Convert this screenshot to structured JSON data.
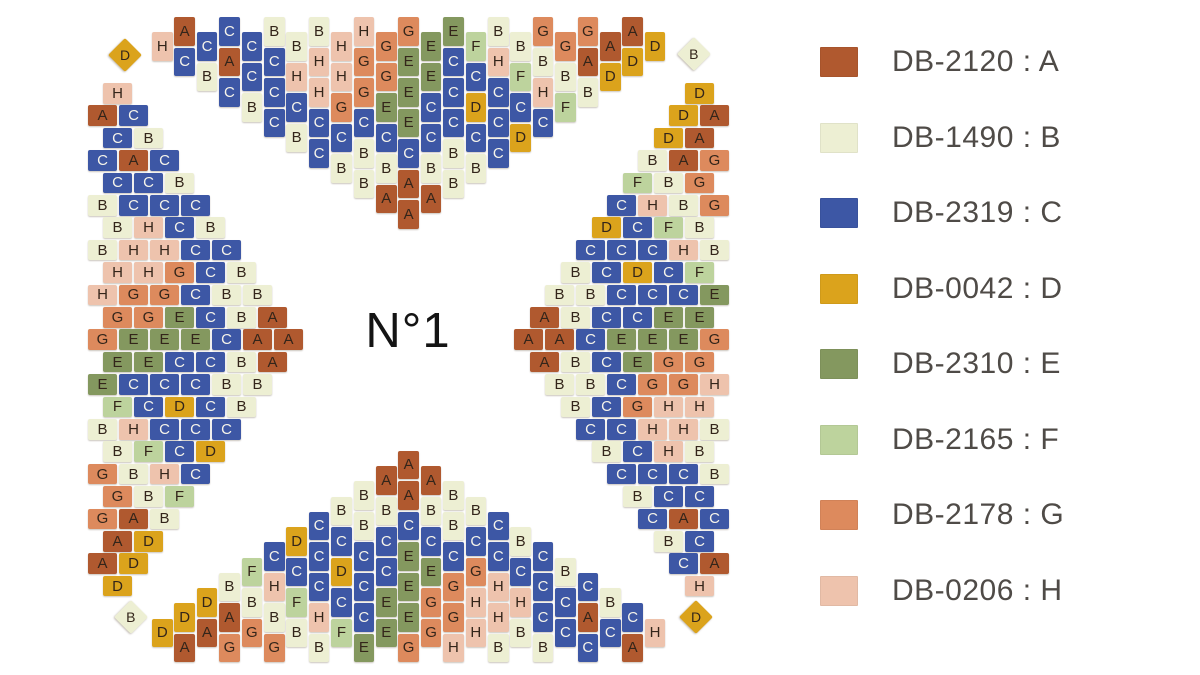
{
  "center_label": "N°1",
  "palette": {
    "A": "#b0592f",
    "B": "#edefd3",
    "C": "#3d57a5",
    "D": "#dba31c",
    "E": "#84985f",
    "F": "#bdd39d",
    "G": "#dd8a5d",
    "H": "#eec3ad"
  },
  "bead_letter_colors": {
    "default": "#33251a",
    "C": "#f6f4ea"
  },
  "legend_separator": " : ",
  "legend": [
    {
      "code": "DB-2120",
      "letter": "A"
    },
    {
      "code": "DB-1490",
      "letter": "B"
    },
    {
      "code": "DB-2319",
      "letter": "C"
    },
    {
      "code": "DB-0042",
      "letter": "D"
    },
    {
      "code": "DB-2310",
      "letter": "E"
    },
    {
      "code": "DB-2165",
      "letter": "F"
    },
    {
      "code": "DB-2178",
      "letter": "G"
    },
    {
      "code": "DB-0206",
      "letter": "H"
    }
  ],
  "triangles": {
    "top": {
      "orientation": "flat-edge-top-point-down",
      "columns_left_to_right_beads_top_to_bottom": [
        "H",
        "AC",
        "CB",
        "CAC",
        "CCB",
        "BCCC",
        "BHCB",
        "BHHCC",
        "HHGCB",
        "HGGCBB",
        "GGECBA",
        "GEEECAA",
        "EECCBA",
        "ECCCBB",
        "FCDCB",
        "BHCCC",
        "BFCD",
        "GBHC",
        "GBF",
        "GAB",
        "AD",
        "AD",
        "D"
      ]
    },
    "left": {
      "orientation": "flat-edge-left-point-right",
      "rows_top_to_bottom_beads_left_to_right": [
        "H",
        "AC",
        "CB",
        "CAC",
        "CCB",
        "BCCC",
        "BHCB",
        "BHHCC",
        "HHGCB",
        "HGGCBB",
        "GGECBA",
        "GEEECAA",
        "EECCBA",
        "ECCCBB",
        "FCDCB",
        "BHCCC",
        "BFCD",
        "GBHC",
        "GBF",
        "GAB",
        "AD",
        "AD",
        "D"
      ]
    },
    "right": {
      "orientation": "flat-edge-right-point-left",
      "rows_top_to_bottom_beads_left_to_right": [
        "D",
        "DA",
        "DA",
        "BAG",
        "FBG",
        "CHBG",
        "DCFB",
        "CCCHB",
        "BCDCF",
        "BBCCCE",
        "ABCCEE",
        "AACEEEG",
        "ABCEGG",
        "BBCGGH",
        "BCGHH",
        "CCHHB",
        "BCHB",
        "CCCB",
        "BCC",
        "CAC",
        "BC",
        "CA",
        "H"
      ]
    },
    "bottom": {
      "orientation": "flat-edge-bottom-point-up",
      "columns_left_to_right_beads_top_to_bottom": [
        "D",
        "DA",
        "DA",
        "BAG",
        "FBG",
        "CHBG",
        "DCFB",
        "CCCHB",
        "BCDCF",
        "BBCCCE",
        "ABCCEE",
        "AACEEEG",
        "ABCEGG",
        "BBCGGH",
        "BCGHH",
        "CCHHB",
        "BCHB",
        "CCCB",
        "BCC",
        "CAC",
        "BC",
        "CA",
        "H"
      ]
    }
  },
  "corner_diamonds": [
    {
      "position": "top-left",
      "letter": "D"
    },
    {
      "position": "top-right",
      "letter": "B"
    },
    {
      "position": "bottom-left",
      "letter": "B"
    },
    {
      "position": "bottom-right",
      "letter": "D"
    }
  ]
}
